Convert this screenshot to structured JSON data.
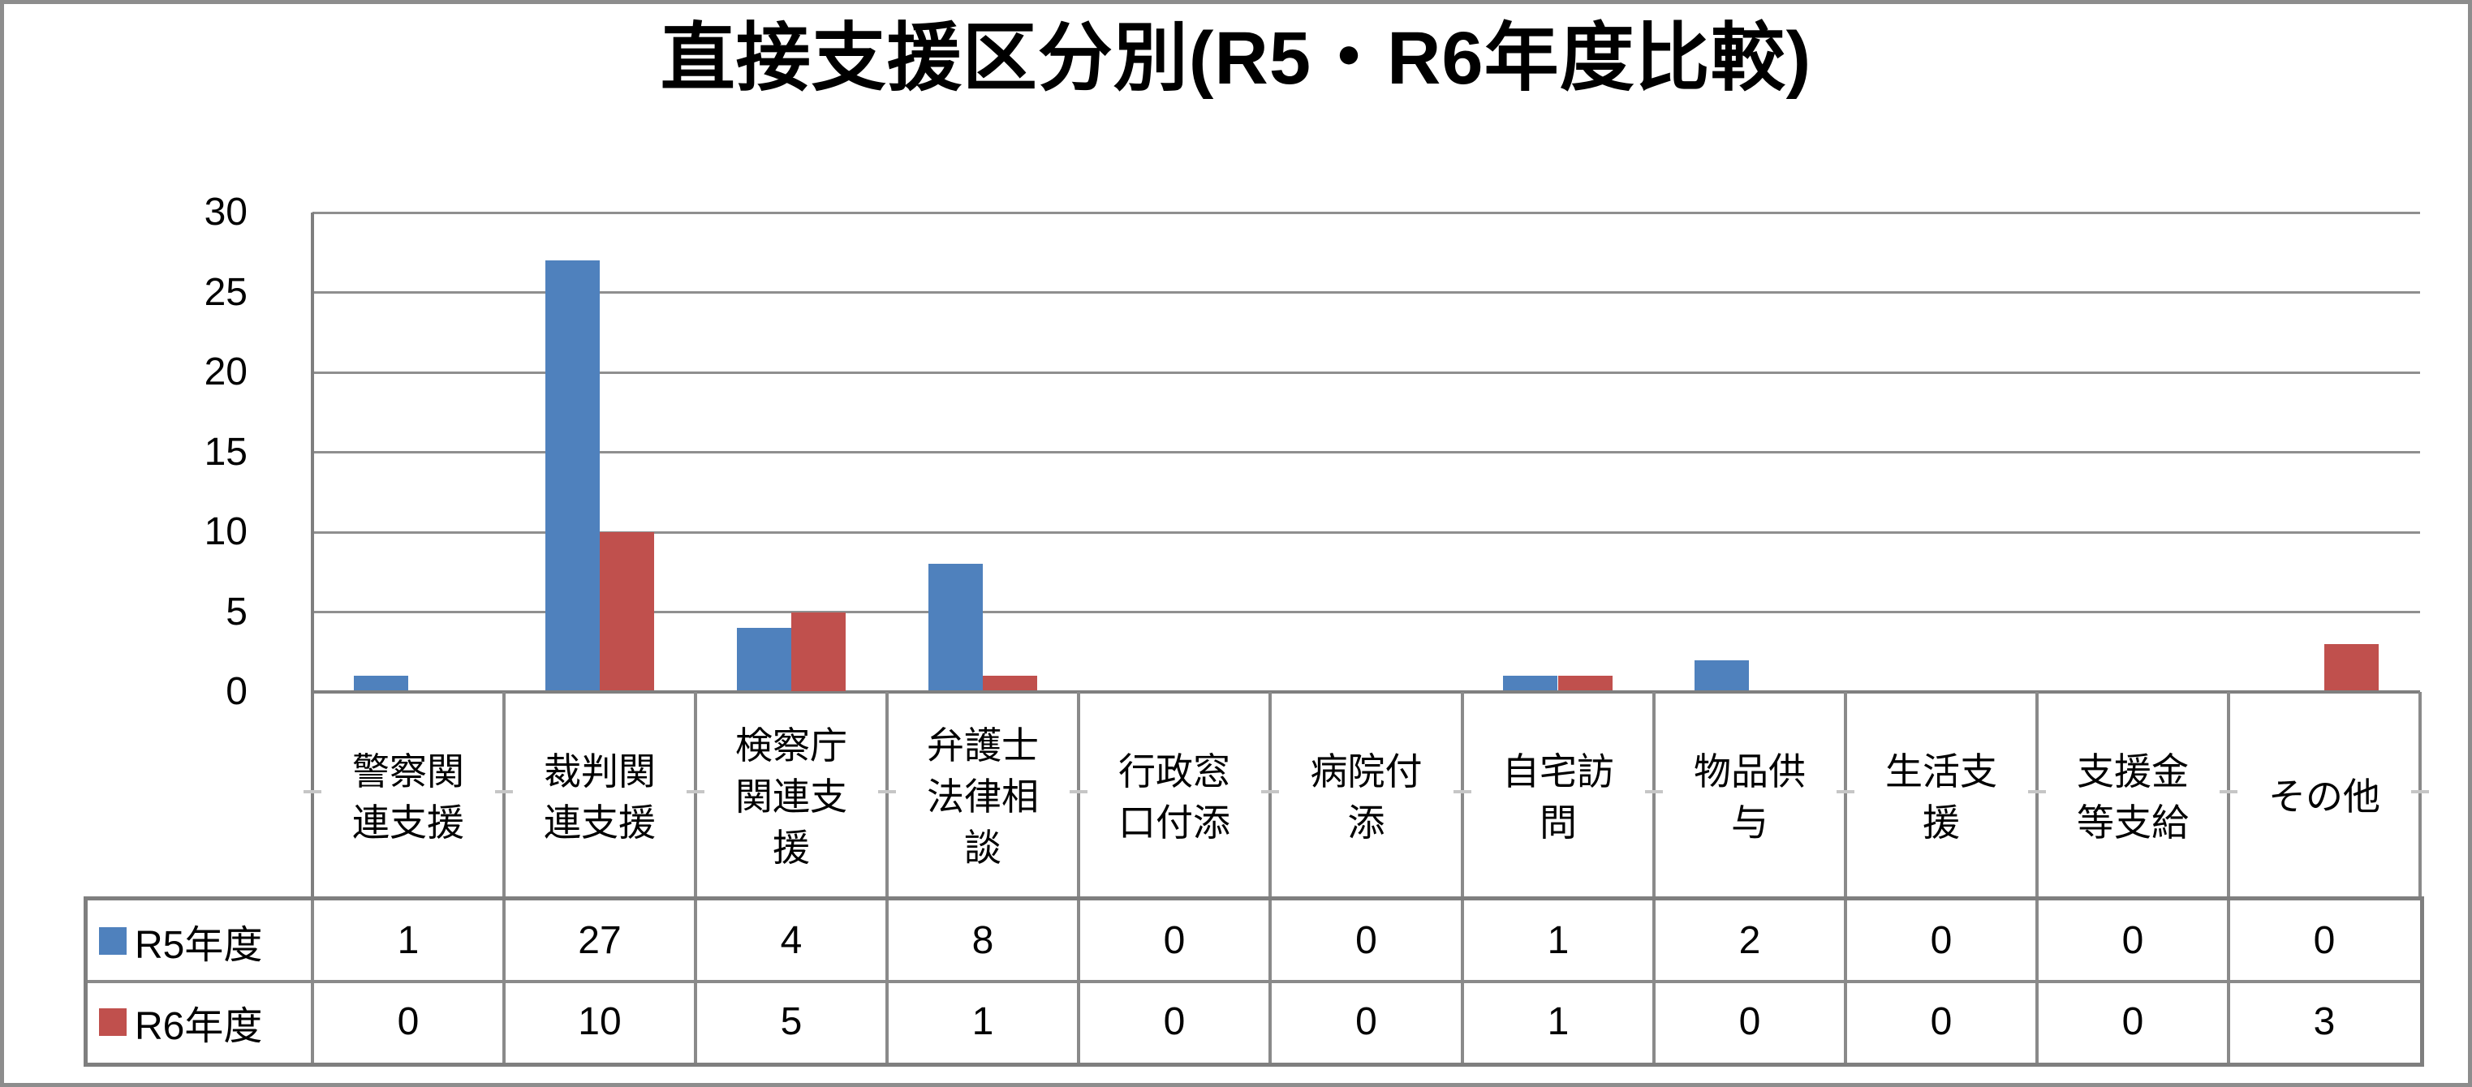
{
  "title": "直接支援区分別(R5・R6年度比較)",
  "chart_data": {
    "type": "bar",
    "title": "直接支援区分別(R5・R6年度比較)",
    "categories": [
      "警察関連支援",
      "裁判関連支援",
      "検察庁関連支援",
      "弁護士法律相談",
      "行政窓口付添",
      "病院付添",
      "自宅訪問",
      "物品供与",
      "生活支援",
      "支援金等支給",
      "その他"
    ],
    "series": [
      {
        "name": "R5年度",
        "color": "#4F81BD",
        "values": [
          1,
          27,
          4,
          8,
          0,
          0,
          1,
          2,
          0,
          0,
          0
        ]
      },
      {
        "name": "R6年度",
        "color": "#C0504D",
        "values": [
          0,
          10,
          5,
          1,
          0,
          0,
          1,
          0,
          0,
          0,
          3
        ]
      }
    ],
    "xlabel": "",
    "ylabel": "",
    "ylim": [
      0,
      30
    ],
    "yticks": [
      0,
      5,
      10,
      15,
      20,
      25,
      30
    ],
    "grid": true,
    "legend_position": "data-table-left",
    "data_table_shown": true
  },
  "colors": {
    "series_r5": "#4F81BD",
    "series_r6": "#C0504D",
    "gridline": "#8f8f8f",
    "table_border": "#7f7f7f",
    "background": "#ffffff",
    "text": "#000000"
  }
}
